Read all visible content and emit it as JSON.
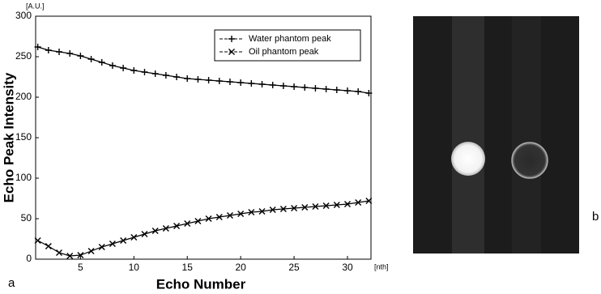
{
  "chart_data": {
    "type": "line",
    "y_unit": "[A.U.]",
    "x_unit": "[nth]",
    "ylabel": "Echo Peak Intensity",
    "xlabel": "Echo Number",
    "x": [
      1,
      2,
      3,
      4,
      5,
      6,
      7,
      8,
      9,
      10,
      11,
      12,
      13,
      14,
      15,
      16,
      17,
      18,
      19,
      20,
      21,
      22,
      23,
      24,
      25,
      26,
      27,
      28,
      29,
      30,
      31,
      32
    ],
    "series": [
      {
        "name": "Water phantom peak",
        "color": "#000000",
        "marker": "+",
        "values": [
          262,
          258,
          256,
          254,
          251,
          247,
          243,
          239,
          236,
          233,
          231,
          229,
          227,
          225,
          223,
          222,
          221,
          220,
          219,
          218,
          217,
          216,
          215,
          214,
          213,
          212,
          211,
          210,
          209,
          208,
          207,
          205
        ]
      },
      {
        "name": "Oil phantom peak",
        "color": "#000000",
        "marker": "x",
        "values": [
          23,
          16,
          8,
          4,
          5,
          10,
          15,
          19,
          23,
          27,
          31,
          35,
          38,
          41,
          44,
          47,
          50,
          52,
          54,
          56,
          58,
          59,
          61,
          62,
          63,
          64,
          65,
          66,
          67,
          68,
          70,
          72
        ]
      }
    ],
    "xlim": [
      0.8,
      32.2
    ],
    "xticks": [
      5,
      10,
      15,
      20,
      25,
      30
    ],
    "ylim": [
      0,
      300
    ],
    "yticks": [
      0,
      50,
      100,
      150,
      200,
      250,
      300
    ],
    "legend": "upper right",
    "grid": false,
    "panel_labels": [
      "a",
      "b"
    ]
  }
}
